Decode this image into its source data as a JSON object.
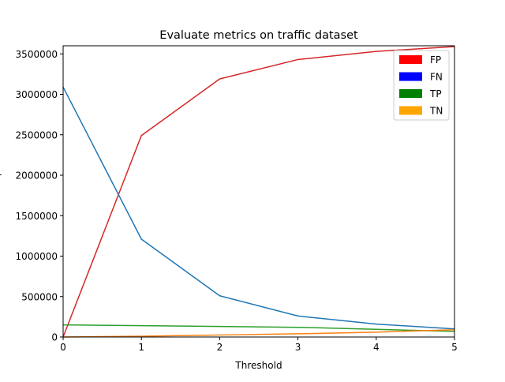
{
  "chart_data": {
    "type": "line",
    "title": "Evaluate metrics on traffic dataset",
    "xlabel": "Threshold",
    "ylabel": "",
    "x": [
      0,
      1,
      2,
      3,
      4,
      5
    ],
    "xlim": [
      0,
      5
    ],
    "ylim": [
      0,
      3600000
    ],
    "x_ticks": [
      "0",
      "1",
      "2",
      "3",
      "4",
      "5"
    ],
    "y_ticks": [
      "0",
      "500000",
      "1000000",
      "1500000",
      "2000000",
      "2500000",
      "3000000",
      "3500000"
    ],
    "y_tick_values": [
      0,
      500000,
      1000000,
      1500000,
      2000000,
      2500000,
      3000000,
      3500000
    ],
    "grid": false,
    "legend_position": "top-right",
    "legend": [
      {
        "name": "FP",
        "color": "#ff0000"
      },
      {
        "name": "FN",
        "color": "#0000ff"
      },
      {
        "name": "TP",
        "color": "#008000"
      },
      {
        "name": "TN",
        "color": "#ffa500"
      }
    ],
    "series": [
      {
        "color": "#d62728",
        "values": [
          0,
          2490000,
          3190000,
          3430000,
          3530000,
          3590000
        ]
      },
      {
        "color": "#1f77b4",
        "values": [
          3090000,
          1210000,
          510000,
          260000,
          160000,
          100000
        ]
      },
      {
        "color": "#2ca02c",
        "values": [
          150000,
          140000,
          130000,
          120000,
          95000,
          70000
        ]
      },
      {
        "color": "#ff7f0e",
        "values": [
          0,
          10000,
          25000,
          40000,
          60000,
          90000
        ]
      }
    ]
  }
}
